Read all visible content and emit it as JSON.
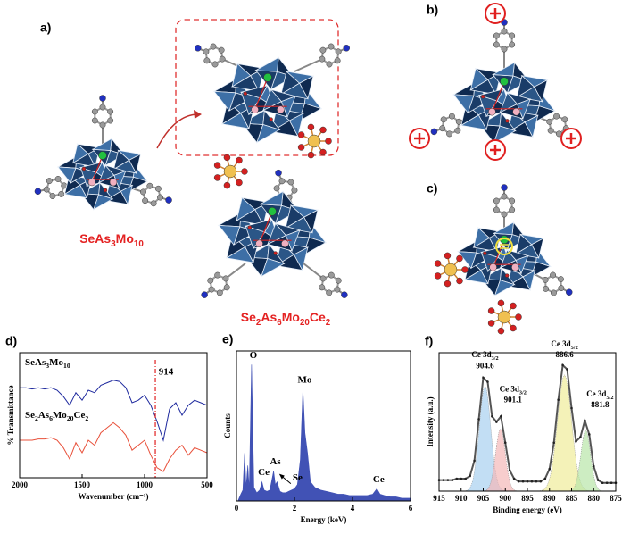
{
  "figure": {
    "panel_labels": [
      "a)",
      "b)",
      "c)",
      "d)",
      "e)",
      "f)"
    ],
    "compounds": [
      "SeAs3Mo10",
      "Se2As6Mo20Ce2"
    ]
  },
  "chart_data": [
    {
      "type": "line",
      "x_label": "Wavenumber (cm⁻¹)",
      "y_label": "% Transmittance",
      "x": [
        2000,
        1950,
        1900,
        1850,
        1800,
        1750,
        1700,
        1650,
        1600,
        1550,
        1500,
        1450,
        1400,
        1350,
        1300,
        1250,
        1200,
        1150,
        1100,
        1050,
        1000,
        950,
        900,
        850,
        800,
        750,
        700,
        650,
        600,
        550,
        500
      ],
      "xlim": [
        2000,
        500
      ],
      "xticks": [
        2000,
        1500,
        1000,
        500
      ],
      "ylim": [
        0,
        100
      ],
      "series": [
        {
          "name": "SeAs3Mo10",
          "color": "#1f2a9e",
          "values": [
            72,
            72,
            71,
            72,
            71,
            72,
            70,
            65,
            58,
            68,
            62,
            70,
            68,
            74,
            76,
            78,
            77,
            72,
            60,
            62,
            66,
            58,
            45,
            30,
            55,
            60,
            50,
            58,
            62,
            60,
            58
          ]
        },
        {
          "name": "Se2As6Mo20Ce2",
          "color": "#e8503a",
          "values": [
            30,
            30,
            30,
            31,
            31,
            32,
            30,
            24,
            15,
            28,
            20,
            30,
            26,
            36,
            40,
            44,
            40,
            34,
            22,
            26,
            30,
            18,
            8,
            5,
            15,
            22,
            26,
            18,
            24,
            22,
            20
          ]
        }
      ],
      "vline": 914
    },
    {
      "type": "area",
      "x_label": "Energy (keV)",
      "y_label": "Counts",
      "color": "#4152b5",
      "x": [
        0.05,
        0.15,
        0.22,
        0.28,
        0.33,
        0.39,
        0.44,
        0.52,
        0.6,
        0.7,
        0.8,
        0.88,
        0.95,
        1.05,
        1.15,
        1.28,
        1.34,
        1.4,
        1.5,
        1.6,
        1.7,
        1.8,
        1.9,
        2.0,
        2.1,
        2.2,
        2.29,
        2.36,
        2.45,
        2.55,
        2.7,
        2.9,
        3.1,
        3.3,
        3.5,
        3.7,
        3.9,
        4.1,
        4.3,
        4.5,
        4.7,
        4.84,
        4.95,
        5.1,
        5.3,
        5.5,
        5.7,
        5.9,
        6.0
      ],
      "values": [
        0,
        5,
        8,
        35,
        10,
        26,
        8,
        100,
        10,
        6,
        8,
        14,
        8,
        7,
        8,
        22,
        12,
        14,
        7,
        6,
        6,
        7,
        8,
        9,
        12,
        30,
        82,
        50,
        35,
        14,
        10,
        8,
        7,
        6,
        5,
        5,
        4,
        4,
        4,
        4,
        5,
        9,
        5,
        4,
        3,
        3,
        2,
        2,
        2
      ],
      "xlim": [
        0,
        6
      ],
      "xticks": [
        0,
        2,
        4,
        6
      ],
      "ylim": [
        0,
        110
      ],
      "annotations": [
        {
          "text": "O",
          "x": 0.52
        },
        {
          "text": "Ce",
          "x": 0.88
        },
        {
          "text": "As",
          "x": 1.28
        },
        {
          "text": "Se",
          "x": 1.38,
          "arrow": true
        },
        {
          "text": "Mo",
          "x": 2.29
        },
        {
          "text": "Ce",
          "x": 4.84
        }
      ]
    },
    {
      "type": "line",
      "x_label": "Binding energy (eV)",
      "y_label": "Intensity (a.u.)",
      "x": [
        915,
        914,
        913,
        912,
        911,
        910,
        909,
        908,
        907,
        906,
        905,
        904,
        903,
        902,
        901,
        900,
        899,
        898,
        897,
        896,
        895,
        894,
        893,
        892,
        891,
        890,
        889,
        888,
        887,
        886,
        885,
        884,
        883,
        882,
        881,
        880,
        879,
        878,
        877,
        876,
        875
      ],
      "xlim": [
        915,
        875
      ],
      "xticks": [
        915,
        910,
        905,
        900,
        895,
        890,
        885,
        880,
        875
      ],
      "ylim": [
        0,
        1
      ],
      "series": [
        {
          "color": "#555555",
          "markers": true,
          "values": [
            0.08,
            0.08,
            0.08,
            0.08,
            0.09,
            0.09,
            0.09,
            0.11,
            0.22,
            0.52,
            0.82,
            0.79,
            0.54,
            0.5,
            0.54,
            0.35,
            0.15,
            0.09,
            0.07,
            0.07,
            0.07,
            0.07,
            0.07,
            0.07,
            0.09,
            0.16,
            0.35,
            0.66,
            0.91,
            0.88,
            0.6,
            0.36,
            0.39,
            0.51,
            0.41,
            0.18,
            0.08,
            0.06,
            0.06,
            0.06,
            0.06
          ]
        }
      ],
      "peaks": [
        {
          "name": "Ce 3d3/2",
          "center": 904.6,
          "height": 0.76,
          "width": 1.3,
          "color": "#a8d0f0"
        },
        {
          "name": "Ce 3d3/2",
          "center": 901.1,
          "height": 0.45,
          "width": 1.1,
          "color": "#f4b8b8"
        },
        {
          "name": "Ce 3d5/2",
          "center": 886.6,
          "height": 0.84,
          "width": 1.6,
          "color": "#f0ec9a"
        },
        {
          "name": "Ce 3d5/2",
          "center": 881.8,
          "height": 0.44,
          "width": 1.1,
          "color": "#b8e6a8"
        }
      ]
    }
  ]
}
